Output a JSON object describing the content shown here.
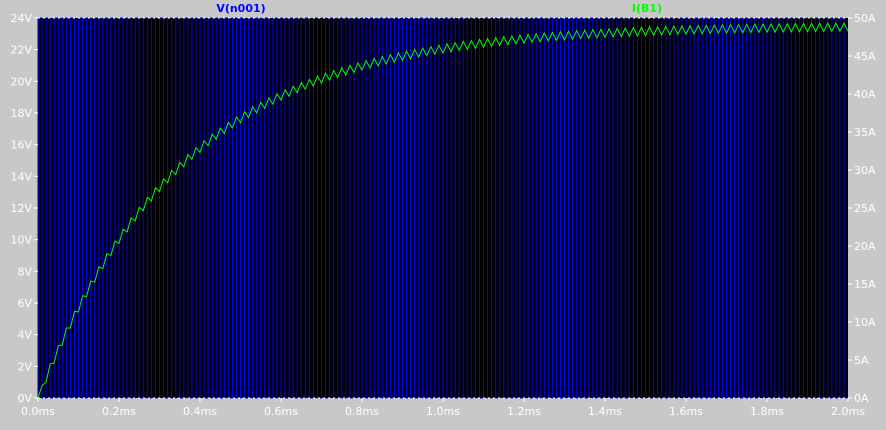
{
  "chart_data": {
    "type": "line",
    "x_unit": "ms",
    "xlim": [
      0,
      2.0
    ],
    "x_ticks": [
      "0.0ms",
      "0.2ms",
      "0.4ms",
      "0.6ms",
      "0.8ms",
      "1.0ms",
      "1.2ms",
      "1.4ms",
      "1.6ms",
      "1.8ms",
      "2.0ms"
    ],
    "y_left": {
      "unit": "V",
      "lim": [
        0,
        24
      ],
      "ticks": [
        "0V",
        "2V",
        "4V",
        "6V",
        "8V",
        "10V",
        "12V",
        "14V",
        "16V",
        "18V",
        "20V",
        "22V",
        "24V"
      ]
    },
    "y_right": {
      "unit": "A",
      "lim": [
        0,
        50
      ],
      "ticks": [
        "0A",
        "5A",
        "10A",
        "15A",
        "20A",
        "25A",
        "30A",
        "35A",
        "40A",
        "45A",
        "50A"
      ]
    },
    "grid": false,
    "series": [
      {
        "name": "V(n001)",
        "axis": "left",
        "color": "#0000ff",
        "kind": "pwm_square",
        "low": 0,
        "high": 24,
        "period_ms": 0.02,
        "duty": 0.5
      },
      {
        "name": "I(B1)",
        "axis": "right",
        "color": "#00ff00",
        "kind": "rl_charge_ripple",
        "final_value": 49,
        "tau_ms": 0.36,
        "ripple_period_ms": 0.02,
        "ripple_amplitude": 1.1
      }
    ],
    "colors": {
      "plot_background": "#000000",
      "frame": "#c8c8c8",
      "axis_line": "#ffffff",
      "tick_text": "#ffffff"
    }
  }
}
